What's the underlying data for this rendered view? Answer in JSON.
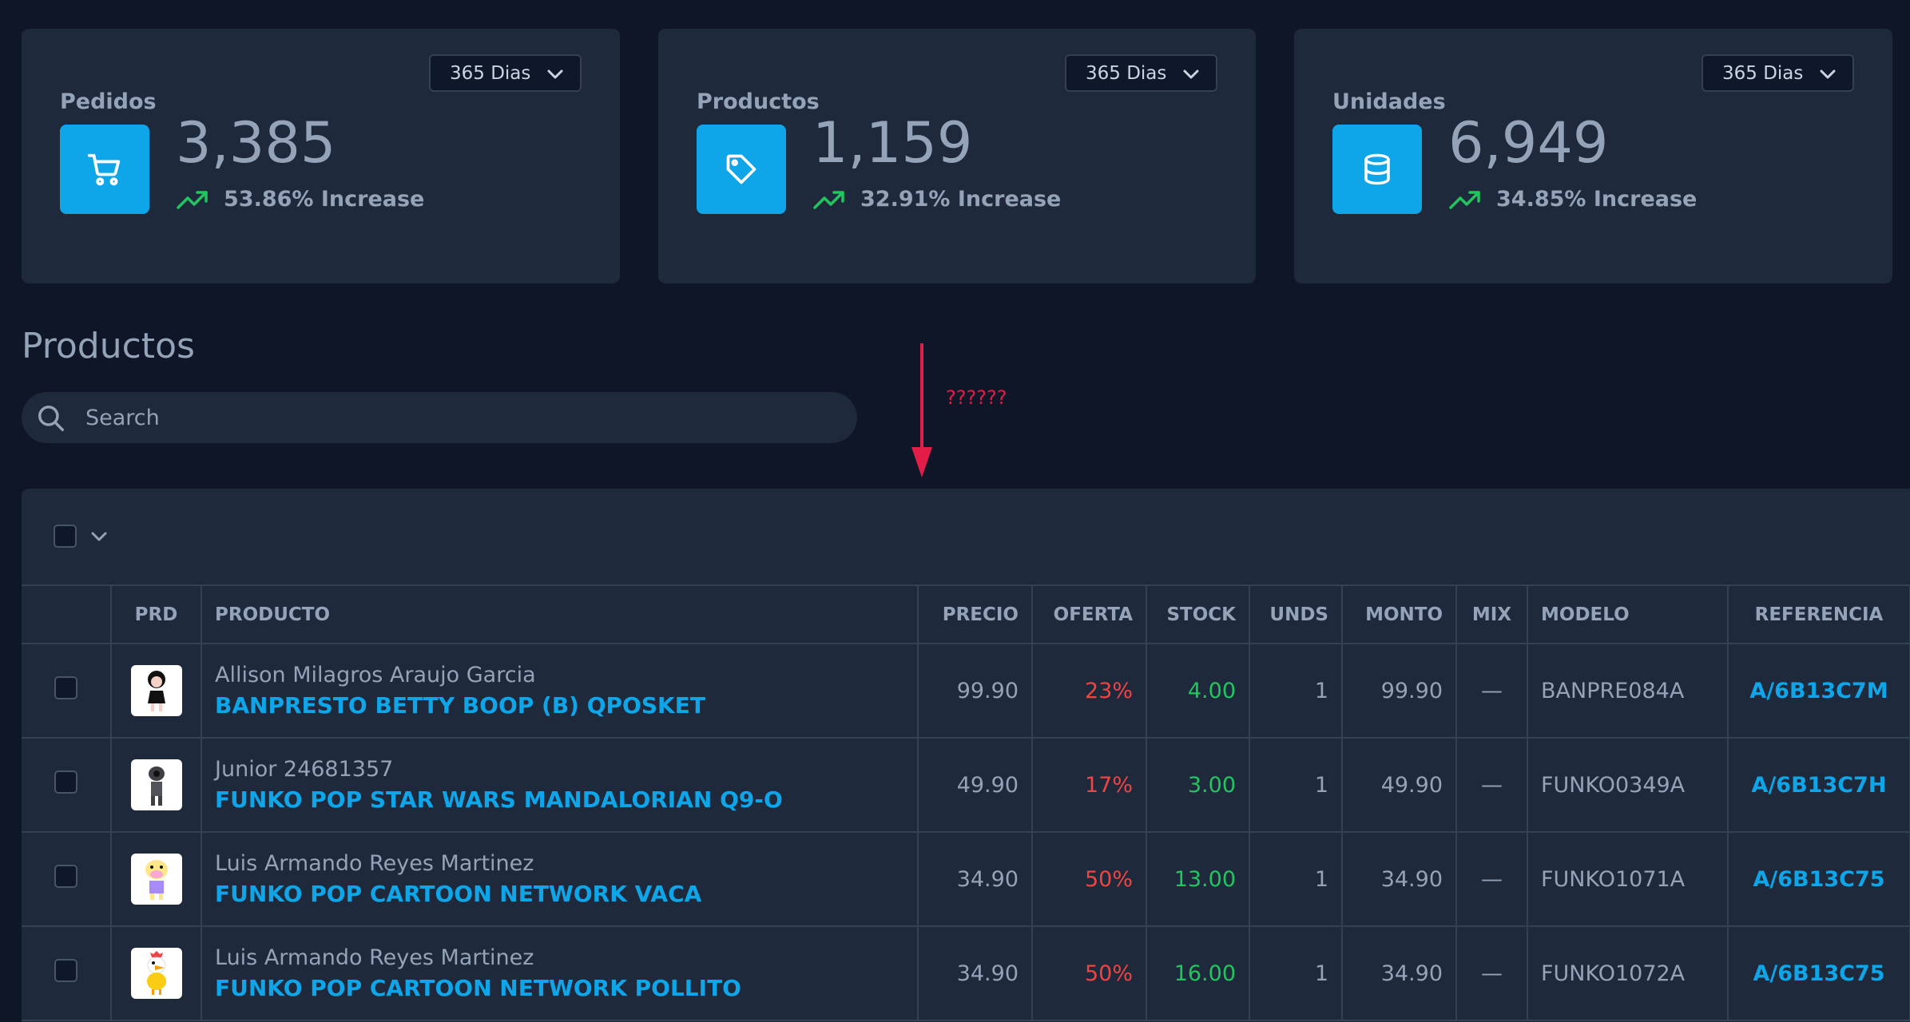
{
  "stats": [
    {
      "title": "Pedidos",
      "range": "365 Dias",
      "value": "3,385",
      "trend": "53.86% Increase",
      "icon": "shopping-cart-icon"
    },
    {
      "title": "Productos",
      "range": "365 Dias",
      "value": "1,159",
      "trend": "32.91% Increase",
      "icon": "tag-icon"
    },
    {
      "title": "Unidades",
      "range": "365 Dias",
      "value": "6,949",
      "trend": "34.85% Increase",
      "icon": "database-icon"
    }
  ],
  "products": {
    "title": "Productos",
    "search_placeholder": "Search"
  },
  "annotation": {
    "text": "??????"
  },
  "table": {
    "headers": {
      "prd": "PRD",
      "producto": "PRODUCTO",
      "precio": "PRECIO",
      "oferta": "OFERTA",
      "stock": "STOCK",
      "unds": "UNDS",
      "monto": "MONTO",
      "mix": "MIX",
      "modelo": "MODELO",
      "referencia": "REFERENCIA"
    },
    "rows": [
      {
        "customer": "Allison Milagros Araujo Garcia",
        "product": "BANPRESTO BETTY BOOP (B) QPOSKET",
        "precio": "99.90",
        "oferta": "23%",
        "stock": "4.00",
        "unds": "1",
        "monto": "99.90",
        "mix": "—",
        "modelo": "BANPRE084A",
        "referencia": "A/6B13C7M"
      },
      {
        "customer": "Junior 24681357",
        "product": "FUNKO POP STAR WARS MANDALORIAN Q9-O",
        "precio": "49.90",
        "oferta": "17%",
        "stock": "3.00",
        "unds": "1",
        "monto": "49.90",
        "mix": "—",
        "modelo": "FUNKO0349A",
        "referencia": "A/6B13C7H"
      },
      {
        "customer": "Luis Armando Reyes Martinez",
        "product": "FUNKO POP CARTOON NETWORK VACA",
        "precio": "34.90",
        "oferta": "50%",
        "stock": "13.00",
        "unds": "1",
        "monto": "34.90",
        "mix": "—",
        "modelo": "FUNKO1071A",
        "referencia": "A/6B13C75"
      },
      {
        "customer": "Luis Armando Reyes Martinez",
        "product": "FUNKO POP CARTOON NETWORK POLLITO",
        "precio": "34.90",
        "oferta": "50%",
        "stock": "16.00",
        "unds": "1",
        "monto": "34.90",
        "mix": "—",
        "modelo": "FUNKO1072A",
        "referencia": "A/6B13C75"
      }
    ]
  },
  "colors": {
    "background": "#0e1628",
    "panel": "#1e293b",
    "accent": "#0ea5e9",
    "increase": "#22c55e",
    "discount": "#ef4444",
    "annotation": "#e11d48"
  }
}
